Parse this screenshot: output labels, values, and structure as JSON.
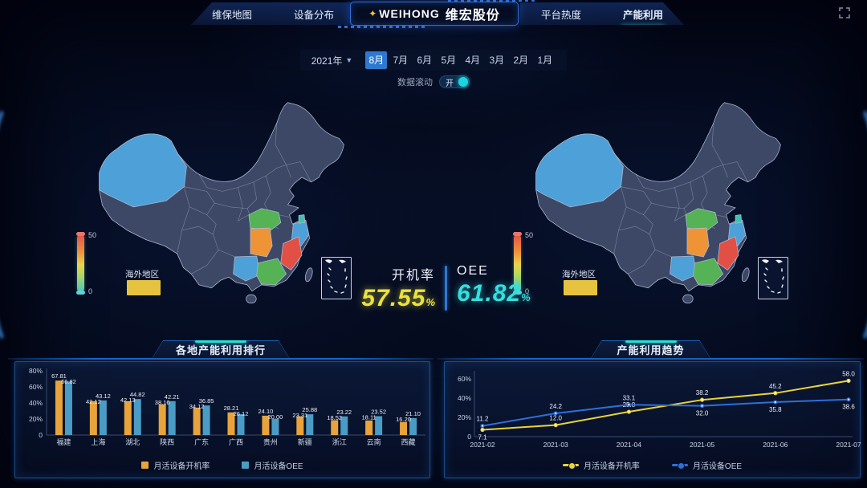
{
  "header": {
    "left_tabs": [
      {
        "label": "维保地图"
      },
      {
        "label": "设备分布"
      }
    ],
    "logo": {
      "brand": "WEIHONG",
      "company": "维宏股份"
    },
    "right_tabs": [
      {
        "label": "平台热度"
      },
      {
        "label": "产能利用",
        "active": true
      }
    ]
  },
  "filters": {
    "year": "2021年",
    "months": [
      "8月",
      "7月",
      "6月",
      "5月",
      "4月",
      "3月",
      "2月",
      "1月"
    ],
    "selected_month": "8月",
    "scroll_label": "数据滚动",
    "scroll_state": "开"
  },
  "map_legend": {
    "max": "50",
    "min": "0",
    "overseas_label": "海外地区"
  },
  "stats": {
    "left": {
      "label": "开机率",
      "value": "57.55",
      "unit": "%"
    },
    "right": {
      "label": "OEE",
      "value": "61.82",
      "unit": "%"
    }
  },
  "panels": {
    "bar_title": "各地产能利用排行",
    "line_title": "产能利用趋势"
  },
  "chart_data": [
    {
      "type": "bar",
      "title": "各地产能利用排行",
      "categories": [
        "福建",
        "上海",
        "湖北",
        "陕西",
        "广东",
        "广西",
        "贵州",
        "新疆",
        "浙江",
        "云南",
        "西藏"
      ],
      "series": [
        {
          "name": "月活设备开机率",
          "color": "#e8a33b",
          "values": [
            67.81,
            42.12,
            42.13,
            38.16,
            34.12,
            28.21,
            24.1,
            23.31,
            18.52,
            18.11,
            16.2
          ]
        },
        {
          "name": "月活设备OEE",
          "color": "#4a9cc4",
          "values": [
            66.82,
            43.12,
            44.82,
            42.21,
            36.85,
            26.12,
            20.0,
            25.88,
            23.22,
            23.52,
            21.1
          ]
        }
      ],
      "ylim": [
        0,
        80
      ],
      "yticks": {
        "values": [
          0,
          20,
          40,
          60,
          80
        ],
        "labels": [
          "0",
          "20%",
          "40%",
          "60%",
          "80%"
        ]
      },
      "grid": false,
      "legend_position": "bottom"
    },
    {
      "type": "line",
      "title": "产能利用趋势",
      "x": [
        "2021-02",
        "2021-03",
        "2021-04",
        "2021-05",
        "2021-06",
        "2021-07"
      ],
      "series": [
        {
          "name": "月活设备开机率",
          "color": "#e9d33b",
          "values": [
            7.1,
            12.0,
            25.8,
            38.2,
            45.2,
            58.0
          ],
          "label_pos": [
            "below",
            "above",
            "above",
            "above",
            "above",
            "above"
          ]
        },
        {
          "name": "月活设备OEE",
          "color": "#2e6fd9",
          "values": [
            11.2,
            24.2,
            33.1,
            32.0,
            35.8,
            38.6
          ],
          "label_pos": [
            "above",
            "above",
            "above",
            "below",
            "below",
            "below"
          ]
        }
      ],
      "ylim": [
        0,
        65
      ],
      "yticks": {
        "values": [
          0,
          20,
          40,
          60
        ],
        "labels": [
          "0",
          "20%",
          "40%",
          "60%"
        ]
      },
      "grid": false,
      "legend_position": "bottom"
    }
  ],
  "map_palette": {
    "base": "#3d4866",
    "border": "#aab8ce",
    "xinjiang": "#4da0d8",
    "hubei": "#55b255",
    "hunan": "#ee9437",
    "zhejiang": "#4da0d8",
    "shanghai": "#3fc2b4",
    "fujian": "#e25045",
    "guangxi": "#4da0d8",
    "guangdong": "#55b255"
  },
  "colors": {
    "accent_cyan": "#27e0d8",
    "accent_blue": "#2e79d0",
    "kpi_yellow": "#ece23e",
    "kpi_cyan": "#36dede"
  }
}
